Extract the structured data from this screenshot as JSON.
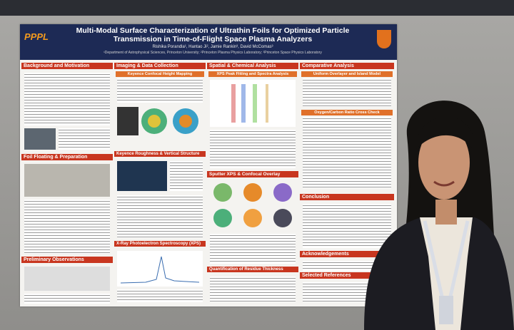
{
  "poster": {
    "logo": "PPPL",
    "title": "Multi-Modal Surface Characterization of Ultrathin Foils for Optimized Particle Transmission in Time-of-Flight Space Plasma Analyzers",
    "authors": "Rishika Porandla¹, Hantao Ji², Jamie Rankin³, David McComas³",
    "affiliations": "¹Department of Astrophysical Sciences, Princeton University; ²Princeton Plasma Physics Laboratory; ³Princeton Space Physics Laboratory",
    "sections": [
      "Background and Motivation",
      "Imaging & Data Collection",
      "Keyence Confocal Height Mapping",
      "Spatial & Chemical Analysis",
      "XPS Peak Fitting and Spectra Analysis",
      "Comparative Analysis",
      "Uniform Overlayer and Island Model",
      "Oxygen/Carbon Ratio Cross Check",
      "Foil Floating & Preparation",
      "Keyence Roughness & Vertical Structure",
      "Sputter XPS & Confocal Overlay",
      "X-Ray Photoelectron Spectroscopy (XPS)",
      "Conclusion",
      "Acknowledgements",
      "Selected References",
      "Preliminary Observations",
      "Quantification of Residue Thickness"
    ]
  }
}
